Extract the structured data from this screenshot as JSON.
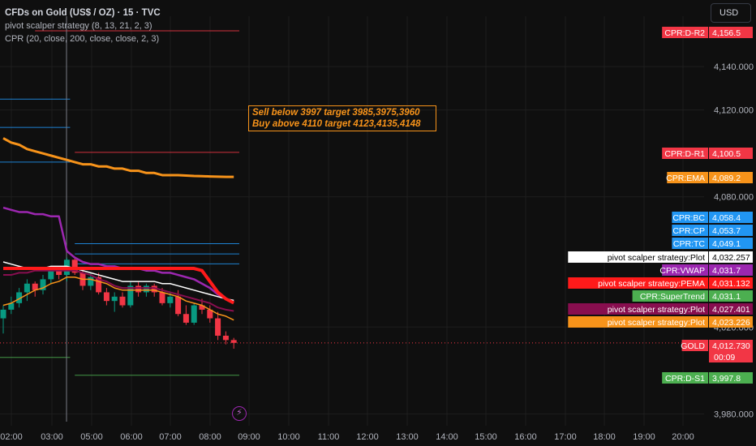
{
  "header": {
    "symbol_title": "CFDs on Gold (US$ / OZ) · 15 · TVC",
    "indicator_1": "pivot scalper strategy (8, 13, 21, 2, 3)",
    "indicator_2": "CPR (20, close, 200, close, close, 2, 3)"
  },
  "currency_button": "USD",
  "annotation": {
    "line_1": "Sell below 3997 target 3985,3975,3960",
    "line_2": "Buy above 4110 target 4123,4135,4148",
    "color": "#f7931a"
  },
  "colors": {
    "background": "#0f0f0f",
    "grid": "#1e1e1e",
    "up_candle": "#089981",
    "down_candle": "#f23645",
    "ema_orange": "#f7931a",
    "vwap_purple": "#9c27b0",
    "pema_red": "#ff1a1a",
    "plot_white": "#ffffff",
    "cpr_blue": "#2196f3",
    "pivot_green": "#4caf50"
  },
  "chart_data": {
    "type": "candlestick",
    "y_axis": {
      "ticks": [
        "4,140.000",
        "4,120.000",
        "4,080.000",
        "4,020.000",
        "3,980.000"
      ],
      "partial_tick": "0",
      "ylim": [
        3972,
        4163
      ]
    },
    "x_axis": {
      "ticks": [
        "02:00",
        "03:00",
        "05:00",
        "06:00",
        "07:00",
        "08:00",
        "09:00",
        "10:00",
        "11:00",
        "12:00",
        "13:00",
        "14:00",
        "15:00",
        "16:00",
        "17:00",
        "18:00",
        "19:00",
        "20:00"
      ]
    },
    "candles": [
      {
        "o": 4024,
        "h": 4030,
        "l": 4017,
        "c": 4028
      },
      {
        "o": 4028,
        "h": 4034,
        "l": 4026,
        "c": 4031
      },
      {
        "o": 4031,
        "h": 4038,
        "l": 4029,
        "c": 4036
      },
      {
        "o": 4036,
        "h": 4042,
        "l": 4032,
        "c": 4040
      },
      {
        "o": 4040,
        "h": 4041,
        "l": 4034,
        "c": 4037
      },
      {
        "o": 4037,
        "h": 4044,
        "l": 4035,
        "c": 4042
      },
      {
        "o": 4042,
        "h": 4048,
        "l": 4040,
        "c": 4046
      },
      {
        "o": 4046,
        "h": 4048,
        "l": 4042,
        "c": 4044
      },
      {
        "o": 4044,
        "h": 4052,
        "l": 4041,
        "c": 4051
      },
      {
        "o": 4051,
        "h": 4052,
        "l": 4044,
        "c": 4045
      },
      {
        "o": 4045,
        "h": 4047,
        "l": 4037,
        "c": 4039
      },
      {
        "o": 4039,
        "h": 4045,
        "l": 4037,
        "c": 4043
      },
      {
        "o": 4043,
        "h": 4045,
        "l": 4035,
        "c": 4036
      },
      {
        "o": 4036,
        "h": 4038,
        "l": 4030,
        "c": 4032
      },
      {
        "o": 4032,
        "h": 4036,
        "l": 4027,
        "c": 4034
      },
      {
        "o": 4034,
        "h": 4036,
        "l": 4029,
        "c": 4030
      },
      {
        "o": 4030,
        "h": 4041,
        "l": 4029,
        "c": 4039
      },
      {
        "o": 4039,
        "h": 4041,
        "l": 4034,
        "c": 4036
      },
      {
        "o": 4036,
        "h": 4040,
        "l": 4034,
        "c": 4039
      },
      {
        "o": 4039,
        "h": 4040,
        "l": 4034,
        "c": 4036
      },
      {
        "o": 4036,
        "h": 4038,
        "l": 4030,
        "c": 4031
      },
      {
        "o": 4031,
        "h": 4036,
        "l": 4029,
        "c": 4034
      },
      {
        "o": 4034,
        "h": 4037,
        "l": 4025,
        "c": 4026
      },
      {
        "o": 4026,
        "h": 4030,
        "l": 4021,
        "c": 4022
      },
      {
        "o": 4022,
        "h": 4031,
        "l": 4021,
        "c": 4030
      },
      {
        "o": 4030,
        "h": 4033,
        "l": 4026,
        "c": 4028
      },
      {
        "o": 4028,
        "h": 4030,
        "l": 4022,
        "c": 4024
      },
      {
        "o": 4024,
        "h": 4027,
        "l": 4014,
        "c": 4016
      },
      {
        "o": 4016,
        "h": 4018,
        "l": 4012,
        "c": 4014
      },
      {
        "o": 4014,
        "h": 4015,
        "l": 4010,
        "c": 4012.7
      }
    ],
    "price_labels": [
      {
        "text": "CPR:D-R2",
        "value": "4,156.5",
        "color": "#f23645"
      },
      {
        "text": "CPR:D-R1",
        "value": "4,100.5",
        "color": "#f23645"
      },
      {
        "text": "CPR:EMA",
        "value": "4,089.2",
        "color": "#f7931a"
      },
      {
        "text": "CPR:BC",
        "value": "4,058.4",
        "color": "#2196f3"
      },
      {
        "text": "CPR:CP",
        "value": "4,053.7",
        "color": "#2196f3"
      },
      {
        "text": "CPR:TC",
        "value": "4,049.1",
        "color": "#2196f3"
      },
      {
        "text": "pivot scalper strategy:Plot",
        "value": "4,032.257",
        "color": "#ffffff"
      },
      {
        "text": "CPR:VWAP",
        "value": "4,031.7",
        "color": "#9c27b0"
      },
      {
        "text": "pivot scalper strategy:PEMA",
        "value": "4,031.132",
        "color": "#ff1a1a"
      },
      {
        "text": "CPR:SuperTrend",
        "value": "4,031.1",
        "color": "#4caf50"
      },
      {
        "text": "pivot scalper strategy:Plot",
        "value": "4,027.401",
        "color": "#880e4f"
      },
      {
        "text": "pivot scalper strategy:Plot",
        "value": "4,023.226",
        "color": "#f7931a"
      },
      {
        "text": "GOLD",
        "value": "4,012.730",
        "color": "#f23645"
      },
      {
        "text": "CPR:D-S1",
        "value": "3,997.8",
        "color": "#4caf50"
      }
    ],
    "countdown": "00:09",
    "horizontal_levels": [
      {
        "value": 4156.5,
        "color": "#f23645",
        "from": 4,
        "to": 30
      },
      {
        "value": 4125,
        "color": "#2196f3",
        "from": 0,
        "to": 8
      },
      {
        "value": 4112,
        "color": "#2196f3",
        "from": 0,
        "to": 8
      },
      {
        "value": 4100.5,
        "color": "#f23645",
        "from": 9,
        "to": 30
      },
      {
        "value": 4096,
        "color": "#2196f3",
        "from": 0,
        "to": 8
      },
      {
        "value": 4058.4,
        "color": "#2196f3",
        "from": 9,
        "to": 30
      },
      {
        "value": 4053.7,
        "color": "#2196f3",
        "from": 9,
        "to": 30
      },
      {
        "value": 4049.1,
        "color": "#2196f3",
        "from": 9,
        "to": 30
      },
      {
        "value": 4006,
        "color": "#4caf50",
        "from": 0,
        "to": 8
      },
      {
        "value": 3997.8,
        "color": "#4caf50",
        "from": 9,
        "to": 30
      }
    ],
    "ema_series": [
      4107,
      4105,
      4104,
      4102,
      4101,
      4100,
      4099,
      4098,
      4097,
      4096,
      4095,
      4095,
      4094,
      4094,
      4093,
      4093,
      4092,
      4092,
      4091,
      4091,
      4090,
      4090,
      4090,
      4089.8,
      4089.6,
      4089.5,
      4089.4,
      4089.3,
      4089.2,
      4089.2
    ],
    "vwap_series": [
      4075,
      4074,
      4073,
      4073,
      4072,
      4072,
      4071,
      4071,
      4055,
      4052,
      4050,
      4049,
      4049,
      4048,
      4048,
      4047,
      4047,
      4047,
      4046,
      4046,
      4045,
      4045,
      4044,
      4043,
      4042,
      4040,
      4038,
      4035,
      4033,
      4031.7
    ],
    "pema_series": [
      4047,
      4047,
      4047,
      4047,
      4047,
      4047,
      4047,
      4047,
      4047,
      4047,
      4047,
      4047,
      4047,
      4047,
      4047,
      4047,
      4047,
      4047,
      4047,
      4047,
      4047,
      4047,
      4047,
      4047,
      4047,
      4046,
      4041,
      4036,
      4033,
      4031.1
    ],
    "white_series": [
      4050,
      4049,
      4048,
      4047,
      4047,
      4047,
      4048,
      4048,
      4048,
      4047,
      4046,
      4045,
      4044,
      4043,
      4042,
      4041,
      4041,
      4041,
      4041,
      4041,
      4040,
      4040,
      4039,
      4038,
      4037,
      4036,
      4035,
      4034,
      4033,
      4032.3
    ],
    "orange_series": [
      4030,
      4031,
      4033,
      4035,
      4037,
      4038,
      4040,
      4041,
      4043,
      4043,
      4042,
      4042,
      4041,
      4040,
      4038,
      4037,
      4037,
      4037,
      4037,
      4037,
      4036,
      4035,
      4034,
      4032,
      4031,
      4030,
      4028,
      4026,
      4025,
      4023.2
    ],
    "maroon_series": [
      4044,
      4044,
      4045,
      4045,
      4046,
      4046,
      4046,
      4046,
      4046,
      4046,
      4045,
      4044,
      4042,
      4041,
      4039,
      4038,
      4038,
      4038,
      4038,
      4038,
      4037,
      4036,
      4035,
      4034,
      4033,
      4032,
      4031,
      4029,
      4028,
      4027.4
    ]
  }
}
